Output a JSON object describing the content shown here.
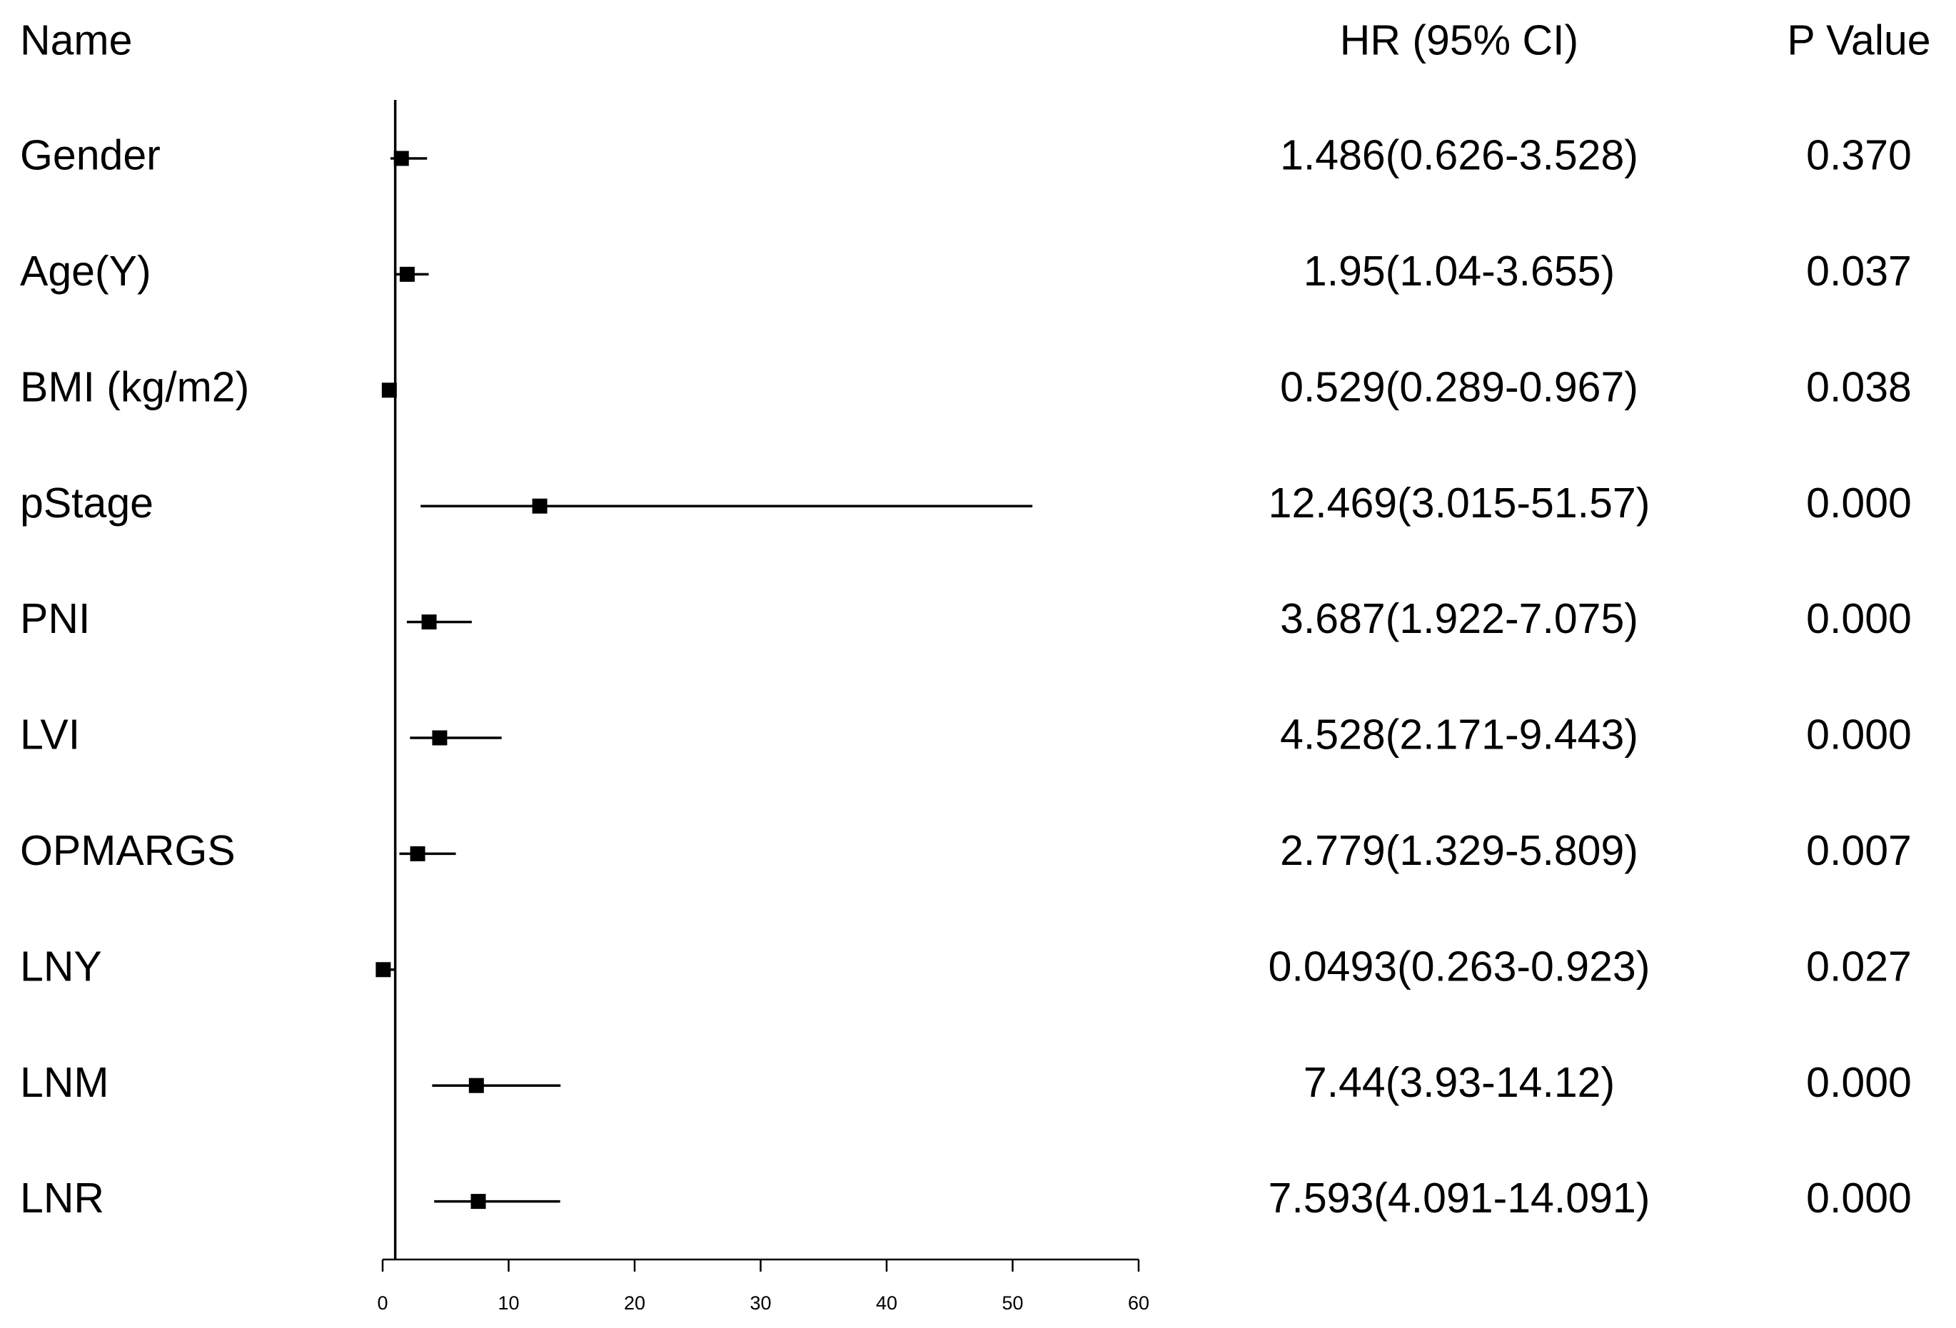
{
  "chart_data": {
    "type": "forest",
    "headers": [
      "Name",
      "HR (95% CI)",
      "P Value"
    ],
    "categories": [
      "Gender",
      "Age(Y)",
      "BMI (kg/m2)",
      "pStage",
      "PNI",
      "LVI",
      "OPMARGS",
      "LNY",
      "LNM",
      "LNR"
    ],
    "values": [
      1.486,
      1.95,
      0.529,
      12.469,
      3.687,
      4.528,
      2.779,
      0.0493,
      7.44,
      7.593
    ],
    "lower": [
      0.626,
      1.04,
      0.289,
      3.015,
      1.922,
      2.171,
      1.329,
      0.263,
      3.93,
      4.091
    ],
    "upper": [
      3.528,
      3.655,
      0.967,
      51.57,
      7.075,
      9.443,
      5.809,
      0.923,
      14.12,
      14.091
    ],
    "value_labels": [
      "1.486(0.626-3.528)",
      "1.95(1.04-3.655)",
      "0.529(0.289-0.967)",
      "12.469(3.015-51.57)",
      "3.687(1.922-7.075)",
      "4.528(2.171-9.443)",
      "2.779(1.329-5.809)",
      "0.0493(0.263-0.923)",
      "7.44(3.93-14.12)",
      "7.593(4.091-14.091)"
    ],
    "p_values": [
      "0.370",
      "0.037",
      "0.038",
      "0.000",
      "0.000",
      "0.000",
      "0.007",
      "0.027",
      "0.000",
      "0.000"
    ],
    "reference_line": 1,
    "xlim": [
      0,
      60
    ],
    "xticks": [
      0,
      10,
      20,
      30,
      40,
      50,
      60
    ],
    "color": "#000000"
  }
}
